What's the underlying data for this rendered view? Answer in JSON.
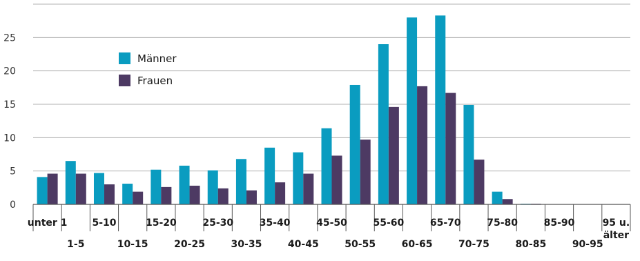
{
  "chart_data": {
    "type": "bar",
    "categories": [
      "unter 1",
      "1-5",
      "5-10",
      "10-15",
      "15-20",
      "20-25",
      "25-30",
      "30-35",
      "35-40",
      "40-45",
      "45-50",
      "50-55",
      "55-60",
      "60-65",
      "65-70",
      "70-75",
      "75-80",
      "80-85",
      "85-90",
      "90-95",
      "95 u. älter"
    ],
    "category_lines": [
      [
        "unter 1"
      ],
      [
        "1-5"
      ],
      [
        "5-10"
      ],
      [
        "10-15"
      ],
      [
        "15-20"
      ],
      [
        "20-25"
      ],
      [
        "25-30"
      ],
      [
        "30-35"
      ],
      [
        "35-40"
      ],
      [
        "40-45"
      ],
      [
        "45-50"
      ],
      [
        "50-55"
      ],
      [
        "55-60"
      ],
      [
        "60-65"
      ],
      [
        "65-70"
      ],
      [
        "70-75"
      ],
      [
        "75-80"
      ],
      [
        "80-85"
      ],
      [
        "85-90"
      ],
      [
        "90-95"
      ],
      [
        "95 u.",
        "älter"
      ]
    ],
    "series": [
      {
        "name": "Männer",
        "color": "#0a9cc0",
        "values": [
          4.1,
          6.5,
          4.7,
          3.1,
          5.2,
          5.8,
          5.1,
          6.8,
          8.5,
          7.8,
          11.4,
          17.9,
          24.0,
          28.0,
          28.3,
          14.9,
          1.9,
          0.1,
          0.05,
          0.05,
          0.05
        ]
      },
      {
        "name": "Frauen",
        "color": "#4d3a63",
        "values": [
          4.6,
          4.6,
          3.0,
          1.9,
          2.6,
          2.8,
          2.4,
          2.1,
          3.3,
          4.6,
          7.3,
          9.7,
          14.6,
          17.7,
          16.7,
          6.7,
          0.8,
          0.1,
          0.05,
          0.05,
          0.05
        ]
      }
    ],
    "yticks": [
      0,
      5,
      10,
      15,
      20,
      25
    ],
    "ylim": [
      0,
      30
    ],
    "grid": true,
    "legend_position": "top-left"
  }
}
